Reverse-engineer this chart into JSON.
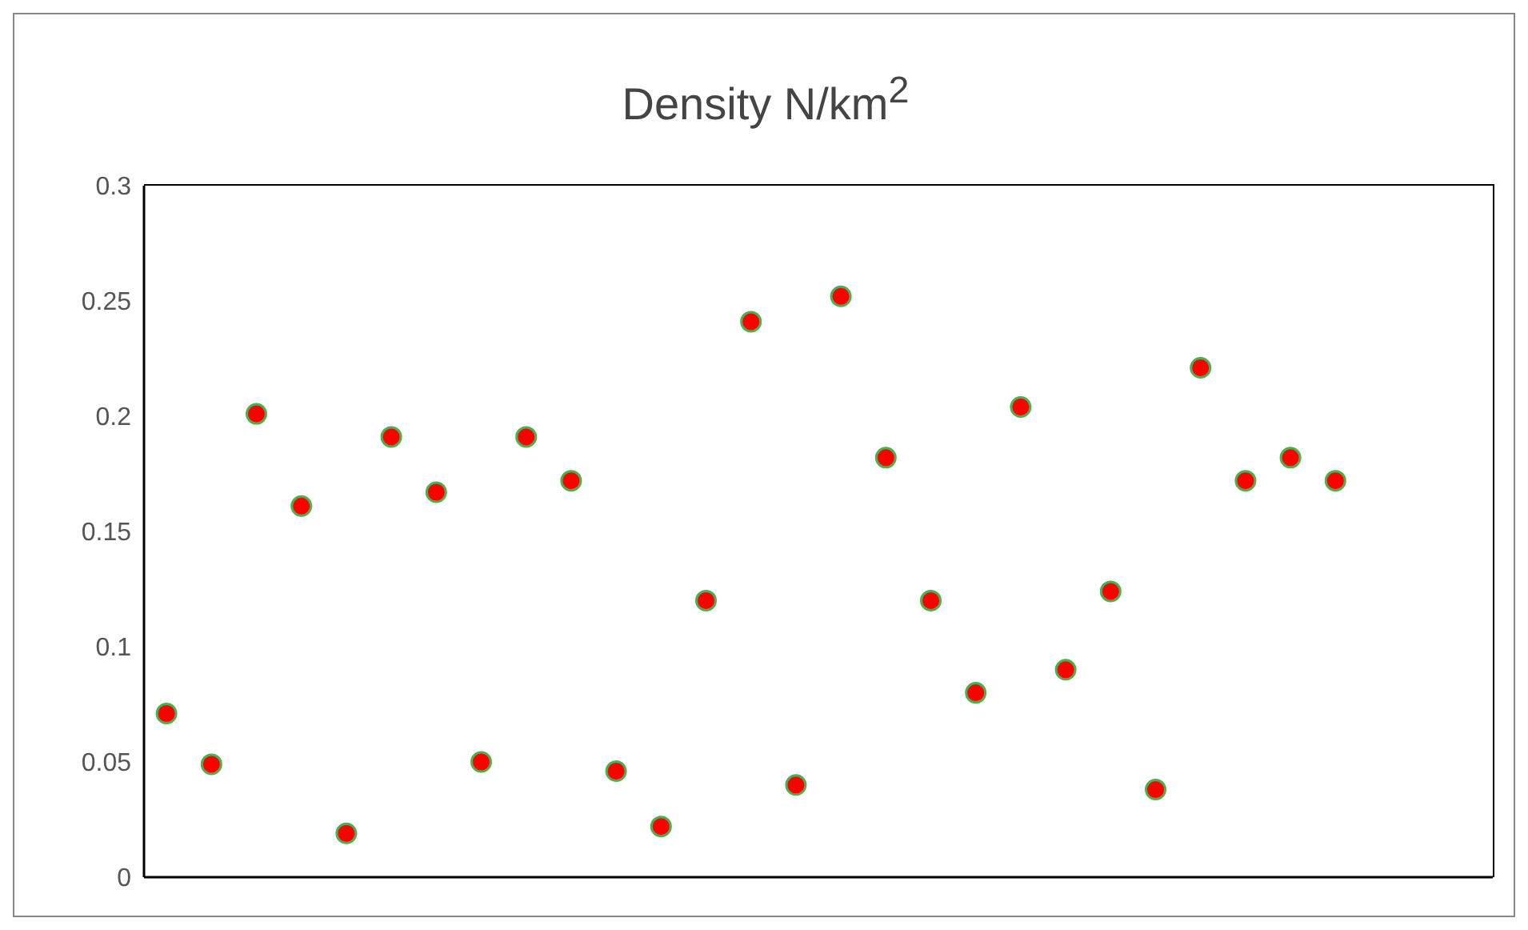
{
  "chart_data": {
    "type": "scatter",
    "title": "Density N/km$^{2}$",
    "categories": [
      null,
      null,
      null,
      null,
      null,
      null,
      null,
      null,
      null,
      null,
      null,
      null,
      null,
      null,
      null,
      null,
      null,
      null,
      null,
      null,
      null,
      null,
      null,
      null,
      null,
      null,
      null,
      null,
      null,
      null
    ],
    "values": [
      0.071,
      0.049,
      0.201,
      0.161,
      0.019,
      0.191,
      0.167,
      0.05,
      0.191,
      0.172,
      0.046,
      0.022,
      0.12,
      0.241,
      0.04,
      0.252,
      0.182,
      0.12,
      0.08,
      0.204,
      0.09,
      0.124,
      0.038,
      0.221,
      0.172,
      0.182,
      0.172,
      null,
      null,
      null
    ],
    "color": "#ff0000",
    "marker": "circle",
    "ylim": [
      0,
      0.3
    ],
    "yticks": [
      0,
      0.05,
      0.1,
      0.15,
      0.2,
      0.25,
      0.3
    ],
    "tick_labels": "y",
    "grid": false,
    "legend": false
  }
}
